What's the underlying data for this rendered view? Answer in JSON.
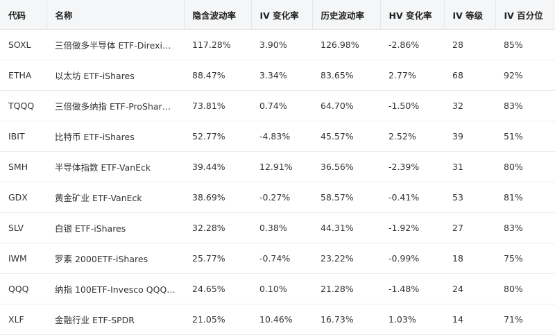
{
  "table": {
    "header": [
      "代码",
      "名称",
      "隐含波动率",
      "IV 变化率",
      "历史波动率",
      "HV 变化率",
      "IV 等级",
      "IV 百分位"
    ],
    "rows": [
      [
        "SOXL",
        "三倍做多半导体 ETF-Direxi…",
        "117.28%",
        "3.90%",
        "126.98%",
        "-2.86%",
        "28",
        "85%"
      ],
      [
        "ETHA",
        "以太坊 ETF-iShares",
        "88.47%",
        "3.34%",
        "83.65%",
        "2.77%",
        "68",
        "92%"
      ],
      [
        "TQQQ",
        "三倍做多纳指 ETF-ProShar…",
        "73.81%",
        "0.74%",
        "64.70%",
        "-1.50%",
        "32",
        "83%"
      ],
      [
        "IBIT",
        "比特币 ETF-iShares",
        "52.77%",
        "-4.83%",
        "45.57%",
        "2.52%",
        "39",
        "51%"
      ],
      [
        "SMH",
        "半导体指数 ETF-VanEck",
        "39.44%",
        "12.91%",
        "36.56%",
        "-2.39%",
        "31",
        "80%"
      ],
      [
        "GDX",
        "黄金矿业 ETF-VanEck",
        "38.69%",
        "-0.27%",
        "58.57%",
        "-0.41%",
        "53",
        "81%"
      ],
      [
        "SLV",
        "白银 ETF-iShares",
        "32.28%",
        "0.38%",
        "44.31%",
        "-1.92%",
        "27",
        "83%"
      ],
      [
        "IWM",
        "罗素 2000ETF-iShares",
        "25.77%",
        "-0.74%",
        "23.22%",
        "-0.99%",
        "18",
        "75%"
      ],
      [
        "QQQ",
        "纳指 100ETF-Invesco QQQ…",
        "24.65%",
        "0.10%",
        "21.28%",
        "-1.48%",
        "24",
        "80%"
      ],
      [
        "XLF",
        "金融行业 ETF-SPDR",
        "21.05%",
        "10.46%",
        "16.73%",
        "1.03%",
        "14",
        "71%"
      ]
    ]
  }
}
